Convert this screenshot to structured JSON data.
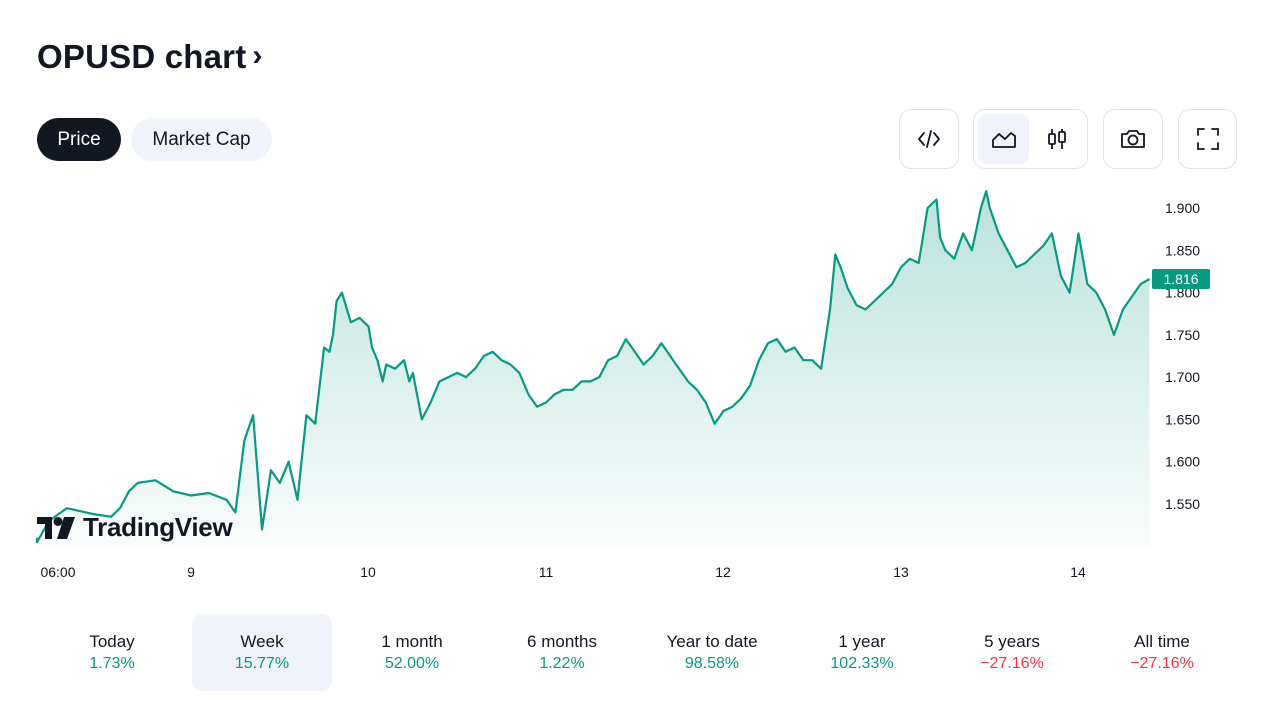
{
  "header": {
    "title": "OPUSD chart",
    "chevron": "›"
  },
  "tabs": [
    {
      "label": "Price",
      "active": true
    },
    {
      "label": "Market Cap",
      "active": false
    }
  ],
  "toolbar": {
    "buttons": [
      {
        "name": "embed-button",
        "icon": "code-icon"
      },
      {
        "name": "area-chart-button",
        "icon": "area-chart-icon",
        "active": true
      },
      {
        "name": "candles-button",
        "icon": "candlestick-icon"
      },
      {
        "name": "snapshot-button",
        "icon": "camera-icon"
      },
      {
        "name": "fullscreen-button",
        "icon": "fullscreen-icon"
      }
    ]
  },
  "colors": {
    "line": "#089981",
    "area_top": "#089981",
    "positive": "#089981",
    "negative": "#f23645",
    "price_tag_bg": "#089981"
  },
  "branding": {
    "logo_text": "TradingView"
  },
  "chart_data": {
    "type": "area",
    "title": "",
    "xlabel": "",
    "ylabel": "",
    "ylim": [
      1.505,
      1.925
    ],
    "x_ticks": [
      "06:00",
      "9",
      "10",
      "11",
      "12",
      "13",
      "14"
    ],
    "y_ticks": [
      "1.900",
      "1.850",
      "1.800",
      "1.750",
      "1.700",
      "1.650",
      "1.600",
      "1.550"
    ],
    "y_tick_values": [
      1.9,
      1.85,
      1.8,
      1.75,
      1.7,
      1.65,
      1.6,
      1.55
    ],
    "last_price": "1.816",
    "last_value": 1.816,
    "series": [
      {
        "x_day": [
          8.0,
          8.1,
          8.2,
          8.3,
          8.45,
          8.55,
          8.6,
          8.65,
          8.7,
          8.8,
          8.9,
          9.0,
          9.1,
          9.2,
          9.25,
          9.3,
          9.35,
          9.4,
          9.45,
          9.5,
          9.55,
          9.6,
          9.65,
          9.7,
          9.75,
          9.78,
          9.8,
          9.82,
          9.85,
          9.9,
          9.95,
          10.0,
          10.02,
          10.05,
          10.08,
          10.1,
          10.15,
          10.2,
          10.23,
          10.25,
          10.3,
          10.35,
          10.4,
          10.45,
          10.5,
          10.55,
          10.6,
          10.65,
          10.7,
          10.75,
          10.8,
          10.85,
          10.9,
          10.95,
          11.0,
          11.05,
          11.1,
          11.15,
          11.2,
          11.25,
          11.3,
          11.35,
          11.4,
          11.45,
          11.5,
          11.55,
          11.6,
          11.65,
          11.7,
          11.75,
          11.8,
          11.85,
          11.9,
          11.95,
          12.0,
          12.05,
          12.1,
          12.15,
          12.2,
          12.25,
          12.3,
          12.35,
          12.4,
          12.45,
          12.5,
          12.55,
          12.6,
          12.63,
          12.66,
          12.7,
          12.75,
          12.8,
          12.85,
          12.9,
          12.95,
          13.0,
          13.05,
          13.1,
          13.15,
          13.2,
          13.22,
          13.25,
          13.3,
          13.35,
          13.4,
          13.45,
          13.48,
          13.5,
          13.55,
          13.6,
          13.65,
          13.7,
          13.75,
          13.8,
          13.85,
          13.9,
          13.95,
          14.0,
          14.05,
          14.1,
          14.15,
          14.2,
          14.25,
          14.3,
          14.35,
          14.4
        ],
        "values": [
          1.51,
          1.505,
          1.53,
          1.545,
          1.538,
          1.535,
          1.545,
          1.565,
          1.575,
          1.578,
          1.565,
          1.56,
          1.563,
          1.555,
          1.54,
          1.625,
          1.655,
          1.52,
          1.59,
          1.575,
          1.6,
          1.555,
          1.655,
          1.645,
          1.735,
          1.73,
          1.75,
          1.79,
          1.8,
          1.765,
          1.77,
          1.76,
          1.735,
          1.72,
          1.695,
          1.715,
          1.71,
          1.72,
          1.695,
          1.705,
          1.65,
          1.67,
          1.695,
          1.7,
          1.705,
          1.7,
          1.71,
          1.725,
          1.73,
          1.72,
          1.715,
          1.705,
          1.68,
          1.665,
          1.67,
          1.68,
          1.685,
          1.685,
          1.695,
          1.695,
          1.7,
          1.72,
          1.725,
          1.745,
          1.73,
          1.715,
          1.725,
          1.74,
          1.725,
          1.71,
          1.695,
          1.685,
          1.67,
          1.645,
          1.66,
          1.665,
          1.675,
          1.69,
          1.72,
          1.74,
          1.745,
          1.73,
          1.735,
          1.72,
          1.72,
          1.71,
          1.78,
          1.845,
          1.83,
          1.805,
          1.785,
          1.78,
          1.79,
          1.8,
          1.81,
          1.83,
          1.84,
          1.835,
          1.9,
          1.91,
          1.865,
          1.85,
          1.84,
          1.87,
          1.85,
          1.9,
          1.92,
          1.9,
          1.87,
          1.85,
          1.83,
          1.835,
          1.845,
          1.855,
          1.87,
          1.82,
          1.8,
          1.87,
          1.81,
          1.8,
          1.78,
          1.75,
          1.78,
          1.795,
          1.81,
          1.816
        ]
      }
    ]
  },
  "periods": [
    {
      "label": "Today",
      "value": "1.73%",
      "sign": "pos",
      "active": false
    },
    {
      "label": "Week",
      "value": "15.77%",
      "sign": "pos",
      "active": true
    },
    {
      "label": "1 month",
      "value": "52.00%",
      "sign": "pos",
      "active": false
    },
    {
      "label": "6 months",
      "value": "1.22%",
      "sign": "pos",
      "active": false
    },
    {
      "label": "Year to date",
      "value": "98.58%",
      "sign": "pos",
      "active": false
    },
    {
      "label": "1 year",
      "value": "102.33%",
      "sign": "pos",
      "active": false
    },
    {
      "label": "5 years",
      "value": "−27.16%",
      "sign": "neg",
      "active": false
    },
    {
      "label": "All time",
      "value": "−27.16%",
      "sign": "neg",
      "active": false
    }
  ]
}
